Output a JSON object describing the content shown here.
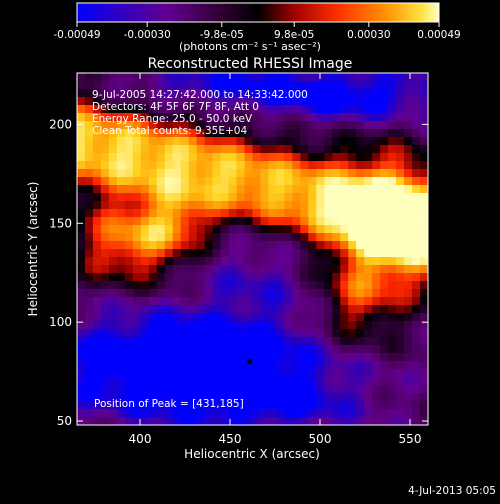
{
  "chart_data": {
    "type": "heatmap",
    "title": "Reconstructed RHESSI Image",
    "xlabel": "Heliocentric X (arcsec)",
    "ylabel": "Heliocentric Y (arcsec)",
    "xlim": [
      365,
      560
    ],
    "ylim": [
      48,
      226
    ],
    "xticks": [
      400,
      450,
      500,
      550
    ],
    "yticks": [
      50,
      100,
      150,
      200
    ],
    "colorbar": {
      "title": "(photons cm⁻² s⁻¹ asec⁻²)",
      "ticks": [
        "-0.00049",
        "-0.00030",
        "-9.8e-05",
        "9.8e-05",
        "0.00030",
        "0.00049"
      ],
      "range": [
        -0.00049,
        0.00049
      ]
    },
    "annotations": [
      "9-Jul-2005 14:27:42.000 to 14:33:42.000",
      "Detectors: 4F 5F 6F 7F 8F, Att 0",
      "Energy Range: 25.0 - 50.0 keV",
      "Clean    Total counts: 9.35E+04"
    ],
    "peak_label": "Position of Peak = [431,185]",
    "peak_position": [
      431,
      185
    ],
    "footer_date": "4-Jul-2013 05:05",
    "colormap": [
      "#0000ff",
      "#1a00c8",
      "#3a00a0",
      "#660080",
      "#400040",
      "#000000",
      "#b00000",
      "#ff2000",
      "#ff8000",
      "#ffc000",
      "#ffffa0"
    ]
  }
}
